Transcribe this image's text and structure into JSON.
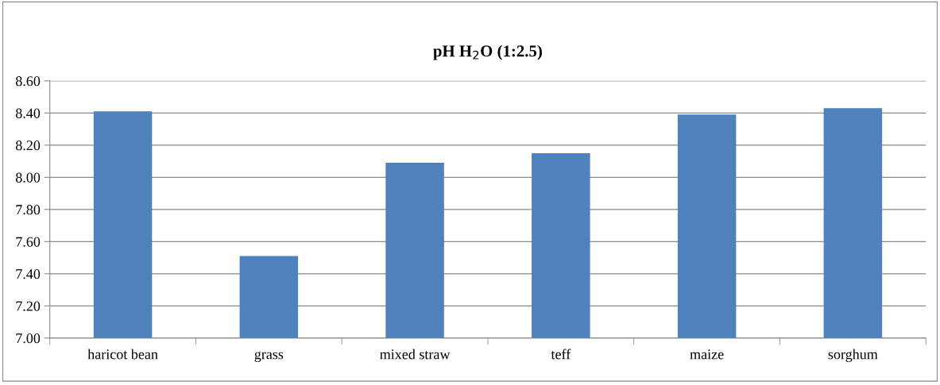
{
  "chart_data": {
    "type": "bar",
    "title": "pH H$_{2}$O (1:2.5)",
    "categories": [
      "haricot bean",
      "grass",
      "mixed straw",
      "teff",
      "maize",
      "sorghum"
    ],
    "values": [
      8.41,
      7.51,
      8.09,
      8.15,
      8.39,
      8.43
    ],
    "color": "#4f81bd",
    "ylim": [
      7.0,
      8.6
    ],
    "yticks": [
      {
        "value": 7.0,
        "label": "7.00"
      },
      {
        "value": 7.2,
        "label": "7.20"
      },
      {
        "value": 7.4,
        "label": "7.40"
      },
      {
        "value": 7.6,
        "label": "7.60"
      },
      {
        "value": 7.8,
        "label": "7.80"
      },
      {
        "value": 8.0,
        "label": "8.00"
      },
      {
        "value": 8.2,
        "label": "8.20"
      },
      {
        "value": 8.4,
        "label": "8.40"
      },
      {
        "value": 8.6,
        "label": "8.60"
      }
    ],
    "grid": "y",
    "legend": false
  }
}
